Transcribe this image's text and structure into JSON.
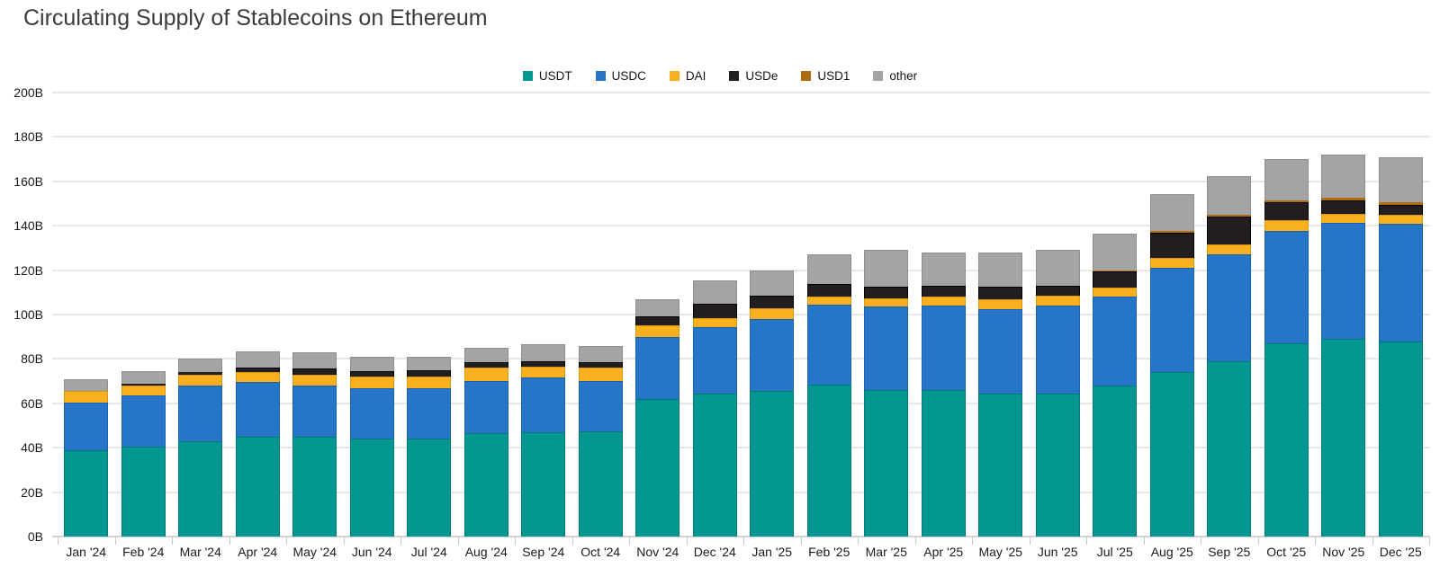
{
  "title": "Circulating Supply of Stablecoins on Ethereum",
  "chart_data": {
    "type": "bar",
    "stacked": true,
    "title": "Circulating Supply of Stablecoins on Ethereum",
    "xlabel": "",
    "ylabel": "",
    "unit": "B",
    "ylim": [
      0,
      200
    ],
    "ytick_step": 20,
    "ytick_labels": [
      "0B",
      "20B",
      "40B",
      "60B",
      "80B",
      "100B",
      "120B",
      "140B",
      "160B",
      "180B",
      "200B"
    ],
    "grid": true,
    "legend_position": "top-center",
    "categories": [
      "Jan '24",
      "Feb '24",
      "Mar '24",
      "Apr '24",
      "May '24",
      "Jun '24",
      "Jul '24",
      "Aug '24",
      "Sep '24",
      "Oct '24",
      "Nov '24",
      "Dec '24",
      "Jan '25",
      "Feb '25",
      "Mar '25",
      "Apr '25",
      "May '25",
      "Jun '25",
      "Jul '25",
      "Aug '25",
      "Sep '25",
      "Oct '25",
      "Nov '25",
      "Dec '25"
    ],
    "series": [
      {
        "name": "USDT",
        "color": "#049690",
        "border": "#027a74",
        "values": [
          39,
          40.5,
          43,
          45,
          45,
          44,
          44,
          46.5,
          47,
          47.5,
          62,
          64.5,
          65.5,
          68.5,
          66,
          66,
          64.5,
          64.5,
          68,
          74,
          79,
          87,
          89,
          88
        ]
      },
      {
        "name": "USDC",
        "color": "#2575c8",
        "border": "#1a5fa8",
        "values": [
          21.5,
          23,
          25,
          24.5,
          23,
          23,
          23,
          23.5,
          24.5,
          22.5,
          28,
          30,
          32.5,
          36,
          37.5,
          38,
          38,
          39.5,
          40,
          47,
          48,
          50.5,
          52.5,
          53
        ]
      },
      {
        "name": "DAI",
        "color": "#f8b01e",
        "border": "#db9712",
        "values": [
          5,
          4.5,
          5,
          4.5,
          5,
          5,
          5,
          6,
          5,
          6,
          5,
          4,
          5,
          3.5,
          4,
          4,
          4.5,
          4.5,
          4,
          4.5,
          4.5,
          5,
          4,
          4
        ]
      },
      {
        "name": "USDe",
        "color": "#221e1f",
        "border": "#000000",
        "values": [
          0,
          0.7,
          1.2,
          2,
          2.5,
          2.5,
          3,
          2.5,
          2.5,
          2.5,
          4,
          6.5,
          5.5,
          6,
          5,
          5,
          5.5,
          4.5,
          7.5,
          11.5,
          12.5,
          8,
          6,
          4.5
        ]
      },
      {
        "name": "USD1",
        "color": "#af6b0e",
        "border": "#8a5407",
        "values": [
          0,
          0,
          0,
          0,
          0,
          0,
          0,
          0,
          0,
          0,
          0,
          0,
          0,
          0,
          0,
          0,
          0,
          0,
          0.5,
          0.8,
          1,
          1,
          1,
          1.3
        ]
      },
      {
        "name": "other",
        "color": "#a4a4a6",
        "border": "#8e8e90",
        "values": [
          5.5,
          5.9,
          5.8,
          7.5,
          7.5,
          6.5,
          6,
          6.5,
          7.5,
          7.5,
          8,
          10.5,
          11.5,
          13,
          16.5,
          15,
          15.5,
          16,
          16.5,
          16.5,
          17.5,
          18.5,
          19.5,
          20
        ]
      }
    ]
  }
}
